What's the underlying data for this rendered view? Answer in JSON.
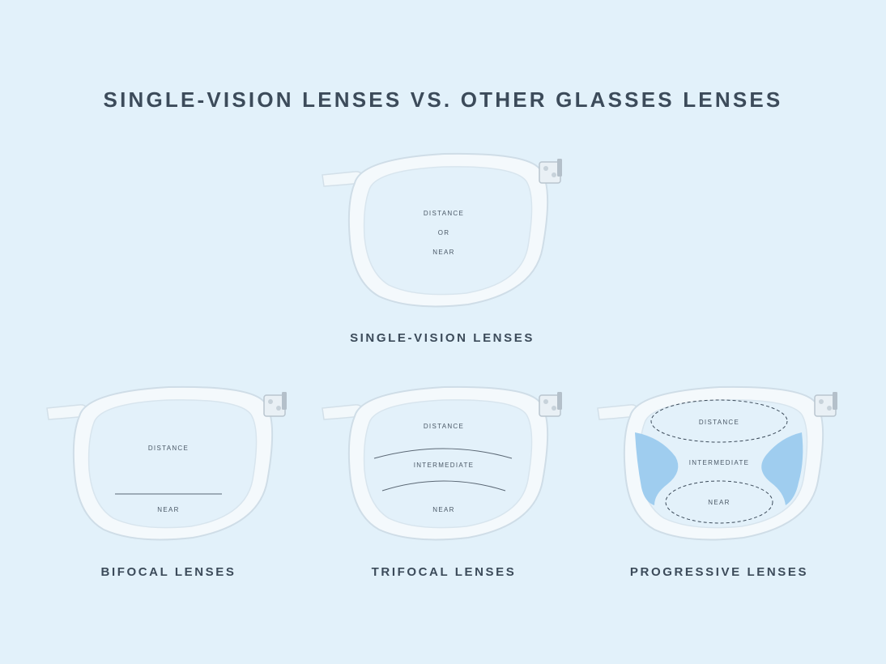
{
  "title": "SINGLE-VISION LENSES VS. OTHER GLASSES LENSES",
  "colors": {
    "background": "#e2f1fa",
    "frame": "#f4f9fc",
    "frame_shadow": "#cfdde7",
    "hinge": "#b9c5cf",
    "progressive_blur": "#9fcdef",
    "text": "#3c4b5a"
  },
  "single_vision": {
    "caption": "SINGLE-VISION LENSES",
    "distance": "DISTANCE",
    "or": "OR",
    "near": "NEAR"
  },
  "bifocal": {
    "caption": "BIFOCAL LENSES",
    "distance": "DISTANCE",
    "near": "NEAR"
  },
  "trifocal": {
    "caption": "TRIFOCAL LENSES",
    "distance": "DISTANCE",
    "intermediate": "INTERMEDIATE",
    "near": "NEAR"
  },
  "progressive": {
    "caption": "PROGRESSIVE LENSES",
    "distance": "DISTANCE",
    "intermediate": "INTERMEDIATE",
    "near": "NEAR"
  }
}
